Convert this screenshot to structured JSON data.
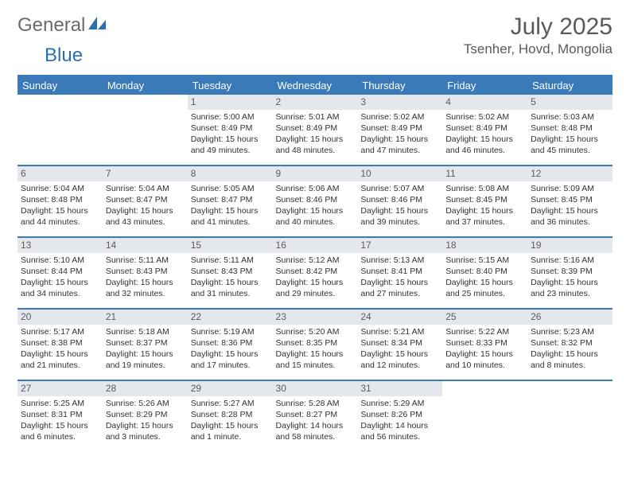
{
  "brand": {
    "part1": "General",
    "part2": "Blue"
  },
  "title": "July 2025",
  "location": "Tsenher, Hovd, Mongolia",
  "colors": {
    "accent": "#3a7ab8",
    "daynum_bg": "#e4e8ec",
    "text": "#333333",
    "brand_gray": "#6a6a6a",
    "brand_blue": "#2a6eb5"
  },
  "dow": [
    "Sunday",
    "Monday",
    "Tuesday",
    "Wednesday",
    "Thursday",
    "Friday",
    "Saturday"
  ],
  "weeks": [
    [
      null,
      null,
      {
        "n": "1",
        "sr": "Sunrise: 5:00 AM",
        "ss": "Sunset: 8:49 PM",
        "d1": "Daylight: 15 hours",
        "d2": "and 49 minutes."
      },
      {
        "n": "2",
        "sr": "Sunrise: 5:01 AM",
        "ss": "Sunset: 8:49 PM",
        "d1": "Daylight: 15 hours",
        "d2": "and 48 minutes."
      },
      {
        "n": "3",
        "sr": "Sunrise: 5:02 AM",
        "ss": "Sunset: 8:49 PM",
        "d1": "Daylight: 15 hours",
        "d2": "and 47 minutes."
      },
      {
        "n": "4",
        "sr": "Sunrise: 5:02 AM",
        "ss": "Sunset: 8:49 PM",
        "d1": "Daylight: 15 hours",
        "d2": "and 46 minutes."
      },
      {
        "n": "5",
        "sr": "Sunrise: 5:03 AM",
        "ss": "Sunset: 8:48 PM",
        "d1": "Daylight: 15 hours",
        "d2": "and 45 minutes."
      }
    ],
    [
      {
        "n": "6",
        "sr": "Sunrise: 5:04 AM",
        "ss": "Sunset: 8:48 PM",
        "d1": "Daylight: 15 hours",
        "d2": "and 44 minutes."
      },
      {
        "n": "7",
        "sr": "Sunrise: 5:04 AM",
        "ss": "Sunset: 8:47 PM",
        "d1": "Daylight: 15 hours",
        "d2": "and 43 minutes."
      },
      {
        "n": "8",
        "sr": "Sunrise: 5:05 AM",
        "ss": "Sunset: 8:47 PM",
        "d1": "Daylight: 15 hours",
        "d2": "and 41 minutes."
      },
      {
        "n": "9",
        "sr": "Sunrise: 5:06 AM",
        "ss": "Sunset: 8:46 PM",
        "d1": "Daylight: 15 hours",
        "d2": "and 40 minutes."
      },
      {
        "n": "10",
        "sr": "Sunrise: 5:07 AM",
        "ss": "Sunset: 8:46 PM",
        "d1": "Daylight: 15 hours",
        "d2": "and 39 minutes."
      },
      {
        "n": "11",
        "sr": "Sunrise: 5:08 AM",
        "ss": "Sunset: 8:45 PM",
        "d1": "Daylight: 15 hours",
        "d2": "and 37 minutes."
      },
      {
        "n": "12",
        "sr": "Sunrise: 5:09 AM",
        "ss": "Sunset: 8:45 PM",
        "d1": "Daylight: 15 hours",
        "d2": "and 36 minutes."
      }
    ],
    [
      {
        "n": "13",
        "sr": "Sunrise: 5:10 AM",
        "ss": "Sunset: 8:44 PM",
        "d1": "Daylight: 15 hours",
        "d2": "and 34 minutes."
      },
      {
        "n": "14",
        "sr": "Sunrise: 5:11 AM",
        "ss": "Sunset: 8:43 PM",
        "d1": "Daylight: 15 hours",
        "d2": "and 32 minutes."
      },
      {
        "n": "15",
        "sr": "Sunrise: 5:11 AM",
        "ss": "Sunset: 8:43 PM",
        "d1": "Daylight: 15 hours",
        "d2": "and 31 minutes."
      },
      {
        "n": "16",
        "sr": "Sunrise: 5:12 AM",
        "ss": "Sunset: 8:42 PM",
        "d1": "Daylight: 15 hours",
        "d2": "and 29 minutes."
      },
      {
        "n": "17",
        "sr": "Sunrise: 5:13 AM",
        "ss": "Sunset: 8:41 PM",
        "d1": "Daylight: 15 hours",
        "d2": "and 27 minutes."
      },
      {
        "n": "18",
        "sr": "Sunrise: 5:15 AM",
        "ss": "Sunset: 8:40 PM",
        "d1": "Daylight: 15 hours",
        "d2": "and 25 minutes."
      },
      {
        "n": "19",
        "sr": "Sunrise: 5:16 AM",
        "ss": "Sunset: 8:39 PM",
        "d1": "Daylight: 15 hours",
        "d2": "and 23 minutes."
      }
    ],
    [
      {
        "n": "20",
        "sr": "Sunrise: 5:17 AM",
        "ss": "Sunset: 8:38 PM",
        "d1": "Daylight: 15 hours",
        "d2": "and 21 minutes."
      },
      {
        "n": "21",
        "sr": "Sunrise: 5:18 AM",
        "ss": "Sunset: 8:37 PM",
        "d1": "Daylight: 15 hours",
        "d2": "and 19 minutes."
      },
      {
        "n": "22",
        "sr": "Sunrise: 5:19 AM",
        "ss": "Sunset: 8:36 PM",
        "d1": "Daylight: 15 hours",
        "d2": "and 17 minutes."
      },
      {
        "n": "23",
        "sr": "Sunrise: 5:20 AM",
        "ss": "Sunset: 8:35 PM",
        "d1": "Daylight: 15 hours",
        "d2": "and 15 minutes."
      },
      {
        "n": "24",
        "sr": "Sunrise: 5:21 AM",
        "ss": "Sunset: 8:34 PM",
        "d1": "Daylight: 15 hours",
        "d2": "and 12 minutes."
      },
      {
        "n": "25",
        "sr": "Sunrise: 5:22 AM",
        "ss": "Sunset: 8:33 PM",
        "d1": "Daylight: 15 hours",
        "d2": "and 10 minutes."
      },
      {
        "n": "26",
        "sr": "Sunrise: 5:23 AM",
        "ss": "Sunset: 8:32 PM",
        "d1": "Daylight: 15 hours",
        "d2": "and 8 minutes."
      }
    ],
    [
      {
        "n": "27",
        "sr": "Sunrise: 5:25 AM",
        "ss": "Sunset: 8:31 PM",
        "d1": "Daylight: 15 hours",
        "d2": "and 6 minutes."
      },
      {
        "n": "28",
        "sr": "Sunrise: 5:26 AM",
        "ss": "Sunset: 8:29 PM",
        "d1": "Daylight: 15 hours",
        "d2": "and 3 minutes."
      },
      {
        "n": "29",
        "sr": "Sunrise: 5:27 AM",
        "ss": "Sunset: 8:28 PM",
        "d1": "Daylight: 15 hours",
        "d2": "and 1 minute."
      },
      {
        "n": "30",
        "sr": "Sunrise: 5:28 AM",
        "ss": "Sunset: 8:27 PM",
        "d1": "Daylight: 14 hours",
        "d2": "and 58 minutes."
      },
      {
        "n": "31",
        "sr": "Sunrise: 5:29 AM",
        "ss": "Sunset: 8:26 PM",
        "d1": "Daylight: 14 hours",
        "d2": "and 56 minutes."
      },
      null,
      null
    ]
  ]
}
